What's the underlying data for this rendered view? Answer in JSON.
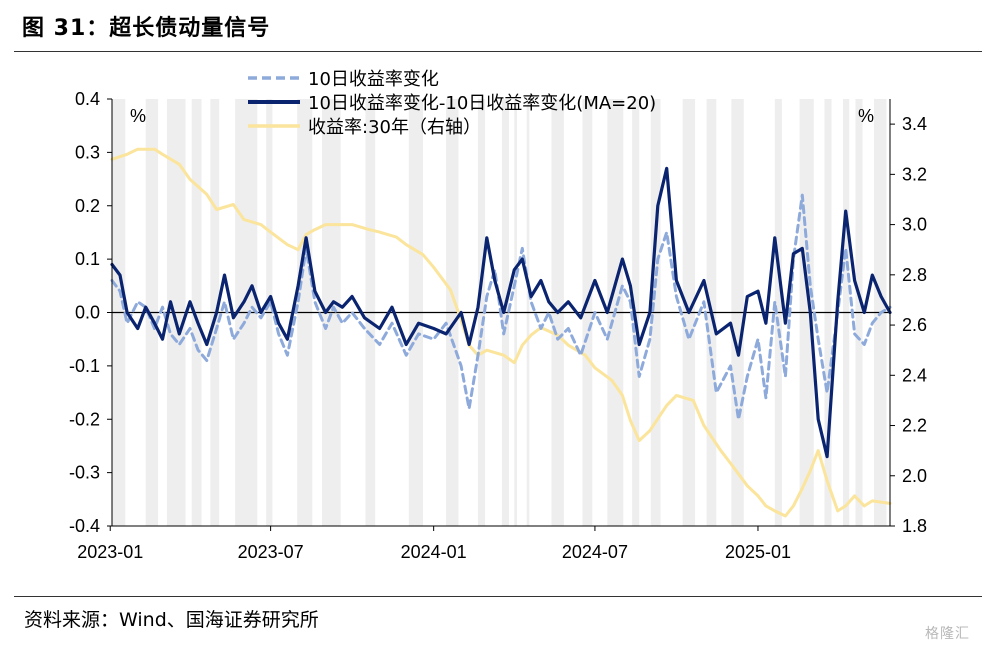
{
  "figure_title": "图 31：超长债动量信号",
  "source_text": "资料来源：Wind、国海证券研究所",
  "watermark": "格隆汇",
  "chart_data": {
    "type": "line",
    "left_axis": {
      "unit": "%",
      "ylim": [
        -0.4,
        0.4
      ],
      "ticks": [
        "0.4",
        "0.3",
        "0.2",
        "0.1",
        "0.0",
        "-0.1",
        "-0.2",
        "-0.3",
        "-0.4"
      ]
    },
    "right_axis": {
      "unit": "%",
      "ylim": [
        1.8,
        3.5
      ],
      "ticks": [
        "3.4",
        "3.2",
        "3.0",
        "2.8",
        "2.6",
        "2.4",
        "2.2",
        "2.0",
        "1.8"
      ]
    },
    "x_ticks": [
      "2023-01",
      "2023-07",
      "2024-01",
      "2024-07",
      "2025-01"
    ],
    "x_range": [
      "2023-01-03",
      "2025-05-30"
    ],
    "grid": false,
    "legend_position": "top-center",
    "series": [
      {
        "name": "10日收益率变化",
        "axis": "left",
        "style": "dashed",
        "color": "#8eaadb",
        "points": [
          [
            "2023-01-03",
            0.06
          ],
          [
            "2023-01-12",
            0.04
          ],
          [
            "2023-01-20",
            -0.02
          ],
          [
            "2023-02-01",
            0.02
          ],
          [
            "2023-02-10",
            0.01
          ],
          [
            "2023-02-20",
            -0.03
          ],
          [
            "2023-03-01",
            0.01
          ],
          [
            "2023-03-10",
            -0.04
          ],
          [
            "2023-03-20",
            -0.06
          ],
          [
            "2023-04-01",
            -0.03
          ],
          [
            "2023-04-10",
            -0.07
          ],
          [
            "2023-04-20",
            -0.09
          ],
          [
            "2023-05-01",
            -0.03
          ],
          [
            "2023-05-10",
            0.02
          ],
          [
            "2023-05-20",
            -0.05
          ],
          [
            "2023-06-01",
            -0.02
          ],
          [
            "2023-06-10",
            0.01
          ],
          [
            "2023-06-20",
            -0.01
          ],
          [
            "2023-07-01",
            0.02
          ],
          [
            "2023-07-10",
            -0.04
          ],
          [
            "2023-07-20",
            -0.08
          ],
          [
            "2023-08-01",
            0.02
          ],
          [
            "2023-08-10",
            0.12
          ],
          [
            "2023-08-20",
            0.02
          ],
          [
            "2023-09-01",
            -0.03
          ],
          [
            "2023-09-10",
            0.01
          ],
          [
            "2023-09-20",
            -0.02
          ],
          [
            "2023-10-01",
            0.0
          ],
          [
            "2023-10-15",
            -0.03
          ],
          [
            "2023-11-01",
            -0.06
          ],
          [
            "2023-11-15",
            -0.02
          ],
          [
            "2023-12-01",
            -0.08
          ],
          [
            "2023-12-15",
            -0.04
          ],
          [
            "2024-01-01",
            -0.05
          ],
          [
            "2024-01-15",
            -0.02
          ],
          [
            "2024-02-01",
            -0.1
          ],
          [
            "2024-02-10",
            -0.18
          ],
          [
            "2024-02-20",
            -0.08
          ],
          [
            "2024-03-01",
            0.03
          ],
          [
            "2024-03-10",
            0.08
          ],
          [
            "2024-03-20",
            -0.04
          ],
          [
            "2024-04-01",
            0.05
          ],
          [
            "2024-04-10",
            0.12
          ],
          [
            "2024-04-20",
            0.02
          ],
          [
            "2024-05-01",
            -0.03
          ],
          [
            "2024-05-10",
            0.0
          ],
          [
            "2024-05-20",
            -0.05
          ],
          [
            "2024-06-01",
            -0.03
          ],
          [
            "2024-06-15",
            -0.08
          ],
          [
            "2024-07-01",
            0.0
          ],
          [
            "2024-07-15",
            -0.05
          ],
          [
            "2024-08-01",
            0.05
          ],
          [
            "2024-08-10",
            0.02
          ],
          [
            "2024-08-20",
            -0.12
          ],
          [
            "2024-09-01",
            -0.05
          ],
          [
            "2024-09-10",
            0.1
          ],
          [
            "2024-09-20",
            0.15
          ],
          [
            "2024-10-01",
            0.03
          ],
          [
            "2024-10-15",
            -0.05
          ],
          [
            "2024-11-01",
            0.02
          ],
          [
            "2024-11-15",
            -0.15
          ],
          [
            "2024-12-01",
            -0.1
          ],
          [
            "2024-12-10",
            -0.2
          ],
          [
            "2024-12-20",
            -0.12
          ],
          [
            "2025-01-01",
            -0.05
          ],
          [
            "2025-01-10",
            -0.16
          ],
          [
            "2025-01-20",
            0.02
          ],
          [
            "2025-02-01",
            -0.12
          ],
          [
            "2025-02-10",
            0.1
          ],
          [
            "2025-02-20",
            0.22
          ],
          [
            "2025-03-01",
            0.05
          ],
          [
            "2025-03-10",
            -0.05
          ],
          [
            "2025-03-20",
            -0.15
          ],
          [
            "2025-04-01",
            0.0
          ],
          [
            "2025-04-10",
            0.12
          ],
          [
            "2025-04-20",
            -0.04
          ],
          [
            "2025-05-01",
            -0.06
          ],
          [
            "2025-05-10",
            -0.02
          ],
          [
            "2025-05-20",
            0.0
          ],
          [
            "2025-05-30",
            0.01
          ]
        ]
      },
      {
        "name": "10日收益率变化-10日收益率变化(MA=20)",
        "axis": "left",
        "style": "solid",
        "color": "#0a2470",
        "points": [
          [
            "2023-01-03",
            0.09
          ],
          [
            "2023-01-12",
            0.07
          ],
          [
            "2023-01-20",
            0.0
          ],
          [
            "2023-02-01",
            -0.03
          ],
          [
            "2023-02-10",
            0.01
          ],
          [
            "2023-02-20",
            -0.02
          ],
          [
            "2023-03-01",
            -0.05
          ],
          [
            "2023-03-10",
            0.02
          ],
          [
            "2023-03-20",
            -0.04
          ],
          [
            "2023-04-01",
            0.02
          ],
          [
            "2023-04-10",
            -0.02
          ],
          [
            "2023-04-20",
            -0.06
          ],
          [
            "2023-05-01",
            0.0
          ],
          [
            "2023-05-10",
            0.07
          ],
          [
            "2023-05-20",
            -0.01
          ],
          [
            "2023-06-01",
            0.02
          ],
          [
            "2023-06-10",
            0.05
          ],
          [
            "2023-06-20",
            0.0
          ],
          [
            "2023-07-01",
            0.03
          ],
          [
            "2023-07-10",
            -0.02
          ],
          [
            "2023-07-20",
            -0.05
          ],
          [
            "2023-08-01",
            0.05
          ],
          [
            "2023-08-10",
            0.14
          ],
          [
            "2023-08-20",
            0.04
          ],
          [
            "2023-09-01",
            0.0
          ],
          [
            "2023-09-10",
            0.02
          ],
          [
            "2023-09-20",
            0.01
          ],
          [
            "2023-10-01",
            0.03
          ],
          [
            "2023-10-15",
            -0.01
          ],
          [
            "2023-11-01",
            -0.03
          ],
          [
            "2023-11-15",
            0.01
          ],
          [
            "2023-12-01",
            -0.06
          ],
          [
            "2023-12-15",
            -0.02
          ],
          [
            "2024-01-01",
            -0.03
          ],
          [
            "2024-01-15",
            -0.04
          ],
          [
            "2024-02-01",
            0.0
          ],
          [
            "2024-02-10",
            -0.06
          ],
          [
            "2024-02-20",
            0.01
          ],
          [
            "2024-03-01",
            0.14
          ],
          [
            "2024-03-10",
            0.06
          ],
          [
            "2024-03-20",
            0.0
          ],
          [
            "2024-04-01",
            0.08
          ],
          [
            "2024-04-10",
            0.1
          ],
          [
            "2024-04-20",
            0.03
          ],
          [
            "2024-05-01",
            0.06
          ],
          [
            "2024-05-10",
            0.02
          ],
          [
            "2024-05-20",
            0.0
          ],
          [
            "2024-06-01",
            0.02
          ],
          [
            "2024-06-15",
            -0.01
          ],
          [
            "2024-07-01",
            0.06
          ],
          [
            "2024-07-15",
            0.0
          ],
          [
            "2024-08-01",
            0.1
          ],
          [
            "2024-08-10",
            0.05
          ],
          [
            "2024-08-20",
            -0.06
          ],
          [
            "2024-09-01",
            0.0
          ],
          [
            "2024-09-10",
            0.2
          ],
          [
            "2024-09-20",
            0.27
          ],
          [
            "2024-10-01",
            0.06
          ],
          [
            "2024-10-15",
            0.0
          ],
          [
            "2024-11-01",
            0.06
          ],
          [
            "2024-11-15",
            -0.04
          ],
          [
            "2024-12-01",
            -0.02
          ],
          [
            "2024-12-10",
            -0.08
          ],
          [
            "2024-12-20",
            0.03
          ],
          [
            "2025-01-01",
            0.04
          ],
          [
            "2025-01-10",
            -0.02
          ],
          [
            "2025-01-20",
            0.14
          ],
          [
            "2025-02-01",
            -0.02
          ],
          [
            "2025-02-10",
            0.11
          ],
          [
            "2025-02-20",
            0.12
          ],
          [
            "2025-03-01",
            0.0
          ],
          [
            "2025-03-10",
            -0.2
          ],
          [
            "2025-03-20",
            -0.27
          ],
          [
            "2025-04-01",
            0.02
          ],
          [
            "2025-04-10",
            0.19
          ],
          [
            "2025-04-20",
            0.06
          ],
          [
            "2025-05-01",
            0.0
          ],
          [
            "2025-05-10",
            0.07
          ],
          [
            "2025-05-20",
            0.03
          ],
          [
            "2025-05-30",
            0.0
          ]
        ]
      },
      {
        "name": "收益率:30年（右轴）",
        "axis": "right",
        "style": "solid",
        "color": "#fbe49b",
        "points": [
          [
            "2023-01-03",
            3.26
          ],
          [
            "2023-01-20",
            3.28
          ],
          [
            "2023-02-01",
            3.3
          ],
          [
            "2023-02-20",
            3.3
          ],
          [
            "2023-03-01",
            3.28
          ],
          [
            "2023-03-20",
            3.24
          ],
          [
            "2023-04-01",
            3.18
          ],
          [
            "2023-04-20",
            3.12
          ],
          [
            "2023-05-01",
            3.06
          ],
          [
            "2023-05-20",
            3.08
          ],
          [
            "2023-06-01",
            3.02
          ],
          [
            "2023-06-20",
            3.0
          ],
          [
            "2023-07-01",
            2.97
          ],
          [
            "2023-07-20",
            2.92
          ],
          [
            "2023-08-01",
            2.9
          ],
          [
            "2023-08-10",
            2.96
          ],
          [
            "2023-08-20",
            2.98
          ],
          [
            "2023-09-01",
            3.0
          ],
          [
            "2023-09-20",
            3.0
          ],
          [
            "2023-10-01",
            3.0
          ],
          [
            "2023-10-20",
            2.98
          ],
          [
            "2023-11-01",
            2.97
          ],
          [
            "2023-11-20",
            2.95
          ],
          [
            "2023-12-01",
            2.92
          ],
          [
            "2023-12-20",
            2.88
          ],
          [
            "2024-01-01",
            2.83
          ],
          [
            "2024-01-20",
            2.74
          ],
          [
            "2024-02-01",
            2.62
          ],
          [
            "2024-02-10",
            2.52
          ],
          [
            "2024-02-20",
            2.48
          ],
          [
            "2024-03-01",
            2.5
          ],
          [
            "2024-03-20",
            2.48
          ],
          [
            "2024-04-01",
            2.45
          ],
          [
            "2024-04-10",
            2.52
          ],
          [
            "2024-04-20",
            2.56
          ],
          [
            "2024-05-01",
            2.59
          ],
          [
            "2024-05-20",
            2.56
          ],
          [
            "2024-06-01",
            2.52
          ],
          [
            "2024-06-20",
            2.48
          ],
          [
            "2024-07-01",
            2.43
          ],
          [
            "2024-07-20",
            2.38
          ],
          [
            "2024-08-01",
            2.32
          ],
          [
            "2024-08-10",
            2.22
          ],
          [
            "2024-08-20",
            2.14
          ],
          [
            "2024-09-01",
            2.18
          ],
          [
            "2024-09-20",
            2.28
          ],
          [
            "2024-10-01",
            2.32
          ],
          [
            "2024-10-20",
            2.3
          ],
          [
            "2024-11-01",
            2.2
          ],
          [
            "2024-11-20",
            2.1
          ],
          [
            "2024-12-01",
            2.05
          ],
          [
            "2024-12-20",
            1.96
          ],
          [
            "2025-01-01",
            1.92
          ],
          [
            "2025-01-10",
            1.88
          ],
          [
            "2025-01-20",
            1.86
          ],
          [
            "2025-02-01",
            1.84
          ],
          [
            "2025-02-10",
            1.88
          ],
          [
            "2025-02-20",
            1.95
          ],
          [
            "2025-03-01",
            2.02
          ],
          [
            "2025-03-10",
            2.1
          ],
          [
            "2025-03-20",
            1.98
          ],
          [
            "2025-04-01",
            1.86
          ],
          [
            "2025-04-10",
            1.88
          ],
          [
            "2025-04-20",
            1.92
          ],
          [
            "2025-05-01",
            1.88
          ],
          [
            "2025-05-10",
            1.9
          ],
          [
            "2025-05-30",
            1.89
          ]
        ]
      }
    ],
    "shaded_periods": [
      [
        "2023-01-03",
        "2023-01-18"
      ],
      [
        "2023-02-10",
        "2023-02-24"
      ],
      [
        "2023-03-06",
        "2023-03-27"
      ],
      [
        "2023-04-03",
        "2023-04-14"
      ],
      [
        "2023-04-24",
        "2023-05-04"
      ],
      [
        "2023-05-22",
        "2023-06-16"
      ],
      [
        "2023-06-26",
        "2023-07-03"
      ],
      [
        "2023-07-31",
        "2023-08-17"
      ],
      [
        "2023-08-28",
        "2023-09-18"
      ],
      [
        "2023-10-16",
        "2023-10-27"
      ],
      [
        "2023-12-04",
        "2023-12-20"
      ],
      [
        "2024-01-15",
        "2024-01-29"
      ],
      [
        "2024-02-20",
        "2024-02-28"
      ],
      [
        "2024-03-18",
        "2024-03-26"
      ],
      [
        "2024-04-01",
        "2024-04-04"
      ],
      [
        "2024-04-15",
        "2024-04-18"
      ],
      [
        "2024-05-13",
        "2024-05-27"
      ],
      [
        "2024-06-17",
        "2024-06-28"
      ],
      [
        "2024-07-15",
        "2024-08-02"
      ],
      [
        "2024-08-12",
        "2024-08-20"
      ],
      [
        "2024-09-02",
        "2024-09-13"
      ],
      [
        "2024-10-08",
        "2024-10-22"
      ],
      [
        "2024-11-04",
        "2024-11-15"
      ],
      [
        "2024-12-02",
        "2024-12-16"
      ],
      [
        "2025-01-20",
        "2025-01-28"
      ],
      [
        "2025-02-17",
        "2025-03-05"
      ],
      [
        "2025-03-17",
        "2025-03-25"
      ],
      [
        "2025-04-07",
        "2025-04-14"
      ],
      [
        "2025-04-21",
        "2025-04-29"
      ],
      [
        "2025-05-12",
        "2025-05-26"
      ]
    ]
  }
}
